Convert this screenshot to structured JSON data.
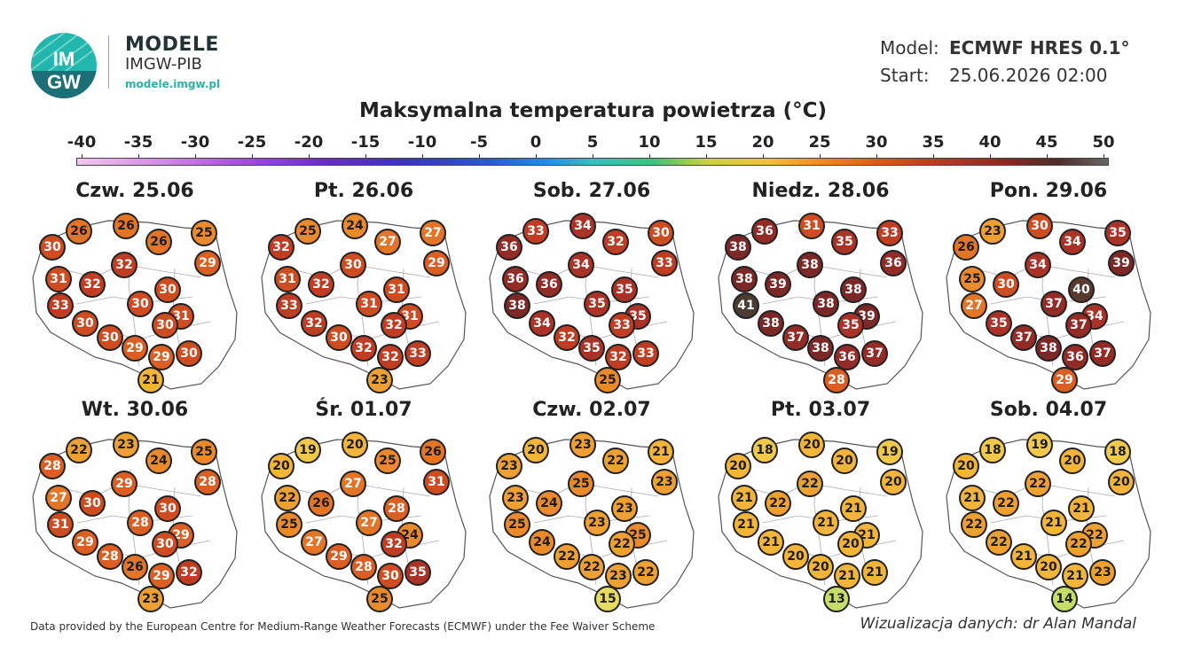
{
  "brand": {
    "logo_text_top": "IM",
    "logo_text_bottom": "GW",
    "title": "MODELE",
    "subtitle": "IMGW-PIB",
    "url": "modele.imgw.pl"
  },
  "model": {
    "label": "Model:",
    "value": "ECMWF HRES 0.1°",
    "start_label": "Start:",
    "start_value": "25.06.2026 02:00"
  },
  "title": "Maksymalna temperatura powietrza (°C)",
  "colorbar": {
    "ticks": [
      "-40",
      "-35",
      "-30",
      "-25",
      "-20",
      "-15",
      "-10",
      "-5",
      "0",
      "5",
      "10",
      "15",
      "20",
      "25",
      "30",
      "35",
      "40",
      "45",
      "50"
    ],
    "min": -40,
    "max": 50
  },
  "maps": [
    {
      "date": "Czw. 25.06",
      "values": [
        30,
        26,
        26,
        26,
        25,
        31,
        32,
        32,
        29,
        33,
        30,
        30,
        31,
        30,
        30,
        29,
        30,
        29,
        30,
        21
      ]
    },
    {
      "date": "Pt. 26.06",
      "values": [
        32,
        25,
        24,
        27,
        27,
        31,
        32,
        30,
        29,
        33,
        31,
        31,
        31,
        32,
        30,
        32,
        32,
        32,
        33,
        23
      ]
    },
    {
      "date": "Sob. 27.06",
      "values": [
        36,
        33,
        34,
        32,
        30,
        36,
        36,
        34,
        33,
        38,
        35,
        35,
        35,
        34,
        32,
        35,
        33,
        32,
        33,
        25
      ]
    },
    {
      "date": "Niedz. 28.06",
      "values": [
        38,
        36,
        31,
        35,
        33,
        38,
        39,
        38,
        36,
        41,
        38,
        38,
        39,
        38,
        37,
        38,
        35,
        36,
        37,
        28
      ]
    },
    {
      "date": "Pon. 29.06",
      "values": [
        26,
        23,
        30,
        34,
        35,
        25,
        30,
        34,
        39,
        27,
        37,
        40,
        34,
        35,
        37,
        38,
        37,
        36,
        37,
        29
      ]
    },
    {
      "date": "Wt. 30.06",
      "values": [
        28,
        22,
        23,
        24,
        25,
        27,
        30,
        29,
        28,
        31,
        28,
        30,
        29,
        29,
        28,
        26,
        30,
        29,
        32,
        23
      ]
    },
    {
      "date": "Śr. 01.07",
      "values": [
        20,
        19,
        20,
        25,
        26,
        22,
        26,
        27,
        31,
        25,
        27,
        28,
        24,
        27,
        29,
        28,
        32,
        30,
        35,
        25
      ]
    },
    {
      "date": "Czw. 02.07",
      "values": [
        23,
        20,
        23,
        22,
        21,
        23,
        24,
        25,
        23,
        25,
        23,
        23,
        25,
        24,
        22,
        22,
        22,
        23,
        22,
        15
      ]
    },
    {
      "date": "Pt. 03.07",
      "values": [
        20,
        18,
        20,
        20,
        19,
        21,
        22,
        22,
        20,
        21,
        21,
        21,
        21,
        21,
        20,
        20,
        20,
        21,
        21,
        13
      ]
    },
    {
      "date": "Sob. 04.07",
      "values": [
        20,
        18,
        19,
        20,
        18,
        21,
        22,
        22,
        20,
        22,
        21,
        21,
        22,
        22,
        21,
        20,
        22,
        21,
        23,
        14
      ]
    }
  ],
  "footer": {
    "credit": "Data provided by the European Centre for Medium-Range Weather Forecasts (ECMWF) under the Fee Waiver Scheme",
    "author": "Wizualizacja danych: dr Alan Mandal"
  }
}
